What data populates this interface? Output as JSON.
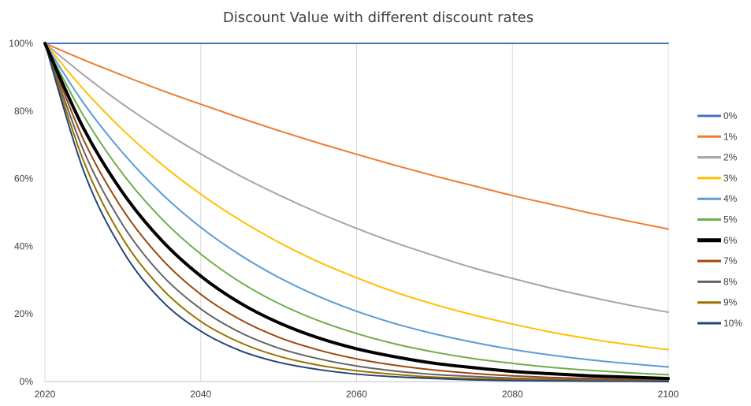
{
  "chart_data": {
    "type": "line",
    "title": "Discount Value with different discount rates",
    "xlabel": "",
    "ylabel": "",
    "x_range": [
      2020,
      2100
    ],
    "x_ticks": [
      "2020",
      "2040",
      "2060",
      "2080",
      "2100"
    ],
    "y_range": [
      0,
      100
    ],
    "y_ticks": [
      "0%",
      "20%",
      "40%",
      "60%",
      "80%",
      "100%"
    ],
    "grid": "vertical",
    "legend_position": "right",
    "x": [
      2020,
      2025,
      2030,
      2035,
      2040,
      2045,
      2050,
      2055,
      2060,
      2065,
      2070,
      2075,
      2080,
      2085,
      2090,
      2095,
      2100
    ],
    "series": [
      {
        "name": "0%",
        "color": "#4472C4",
        "width": 2,
        "values": [
          100,
          100,
          100,
          100,
          100,
          100,
          100,
          100,
          100,
          100,
          100,
          100,
          100,
          100,
          100,
          100,
          100
        ]
      },
      {
        "name": "1%",
        "color": "#ED7D31",
        "width": 2,
        "values": [
          100,
          95.1,
          90.5,
          86.1,
          82.0,
          78.0,
          74.2,
          70.6,
          67.2,
          63.9,
          60.8,
          57.9,
          55.0,
          52.4,
          49.8,
          47.4,
          45.1
        ]
      },
      {
        "name": "2%",
        "color": "#A5A5A5",
        "width": 2,
        "values": [
          100,
          90.6,
          82.0,
          74.3,
          67.3,
          60.9,
          55.2,
          50.0,
          45.3,
          41.0,
          37.2,
          33.6,
          30.5,
          27.6,
          25.0,
          22.6,
          20.5
        ]
      },
      {
        "name": "3%",
        "color": "#FFC000",
        "width": 2,
        "values": [
          100,
          86.3,
          74.4,
          64.2,
          55.4,
          47.8,
          41.2,
          35.5,
          30.7,
          26.4,
          22.8,
          19.7,
          17.0,
          14.6,
          12.6,
          10.9,
          9.4
        ]
      },
      {
        "name": "4%",
        "color": "#5B9BD5",
        "width": 2,
        "values": [
          100,
          82.2,
          67.6,
          55.5,
          45.6,
          37.5,
          30.8,
          25.3,
          20.8,
          17.1,
          14.1,
          11.6,
          9.5,
          7.8,
          6.4,
          5.3,
          4.3
        ]
      },
      {
        "name": "5%",
        "color": "#70AD47",
        "width": 2,
        "values": [
          100,
          78.4,
          61.4,
          48.1,
          37.7,
          29.5,
          23.1,
          18.1,
          14.2,
          11.1,
          8.7,
          6.8,
          5.4,
          4.2,
          3.3,
          2.6,
          2.0
        ]
      },
      {
        "name": "6%",
        "color": "#000000",
        "width": 4,
        "values": [
          100,
          74.7,
          55.8,
          41.7,
          31.2,
          23.3,
          17.4,
          13.0,
          9.7,
          7.3,
          5.4,
          4.1,
          3.0,
          2.3,
          1.7,
          1.3,
          0.9
        ]
      },
      {
        "name": "7%",
        "color": "#9E480E",
        "width": 2,
        "values": [
          100,
          71.3,
          50.8,
          36.2,
          25.8,
          18.4,
          13.1,
          9.4,
          6.7,
          4.8,
          3.4,
          2.4,
          1.7,
          1.2,
          0.9,
          0.6,
          0.4
        ]
      },
      {
        "name": "8%",
        "color": "#636363",
        "width": 2,
        "values": [
          100,
          68.1,
          46.3,
          31.5,
          21.5,
          14.6,
          9.9,
          6.8,
          4.6,
          3.1,
          2.1,
          1.5,
          1.0,
          0.7,
          0.5,
          0.3,
          0.2
        ]
      },
      {
        "name": "9%",
        "color": "#997300",
        "width": 2,
        "values": [
          100,
          65.0,
          42.2,
          27.5,
          17.8,
          11.6,
          7.5,
          4.9,
          3.2,
          2.1,
          1.3,
          0.9,
          0.6,
          0.4,
          0.2,
          0.2,
          0.1
        ]
      },
      {
        "name": "10%",
        "color": "#264478",
        "width": 2,
        "values": [
          100,
          62.1,
          38.6,
          23.9,
          14.9,
          9.2,
          5.7,
          3.6,
          2.2,
          1.4,
          0.9,
          0.5,
          0.3,
          0.2,
          0.1,
          0.1,
          0.0
        ]
      }
    ]
  }
}
